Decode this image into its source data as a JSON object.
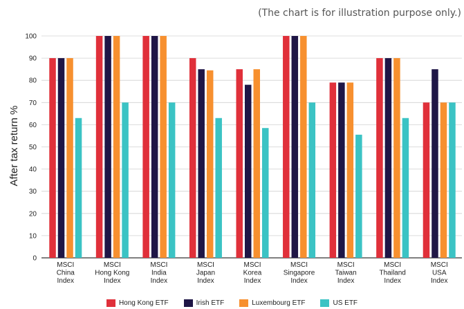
{
  "note": "(The chart is for illustration purpose only.)",
  "chart_data": {
    "type": "bar",
    "ylabel": "After tax return %",
    "xlabel": "",
    "ylim": [
      0,
      100
    ],
    "yticks": [
      0,
      10,
      20,
      30,
      40,
      50,
      60,
      70,
      80,
      90,
      100
    ],
    "grid": true,
    "legend_position": "bottom",
    "categories": [
      [
        "MSCI",
        "China",
        "Index"
      ],
      [
        "MSCI",
        "Hong Kong",
        "Index"
      ],
      [
        "MSCI",
        "India",
        "Index"
      ],
      [
        "MSCI",
        "Japan",
        "Index"
      ],
      [
        "MSCI",
        "Korea",
        "Index"
      ],
      [
        "MSCI",
        "Singapore",
        "Index"
      ],
      [
        "MSCI",
        "Taiwan",
        "Index"
      ],
      [
        "MSCI",
        "Thailand",
        "Index"
      ],
      [
        "MSCI",
        "USA",
        "Index"
      ]
    ],
    "series": [
      {
        "name": "Hong Kong ETF",
        "color": "#e0303a",
        "values": [
          90,
          100,
          100,
          90,
          85,
          100,
          79,
          90,
          70
        ]
      },
      {
        "name": "Irish ETF",
        "color": "#1f1646",
        "values": [
          90,
          100,
          100,
          85,
          78,
          100,
          79,
          90,
          85
        ]
      },
      {
        "name": "Luxembourg ETF",
        "color": "#f7902f",
        "values": [
          90,
          100,
          100,
          84.5,
          85,
          100,
          79,
          90,
          70
        ]
      },
      {
        "name": "US ETF",
        "color": "#3bc3c4",
        "values": [
          63,
          70,
          70,
          63,
          58.5,
          70,
          55.5,
          63,
          70
        ]
      }
    ]
  }
}
